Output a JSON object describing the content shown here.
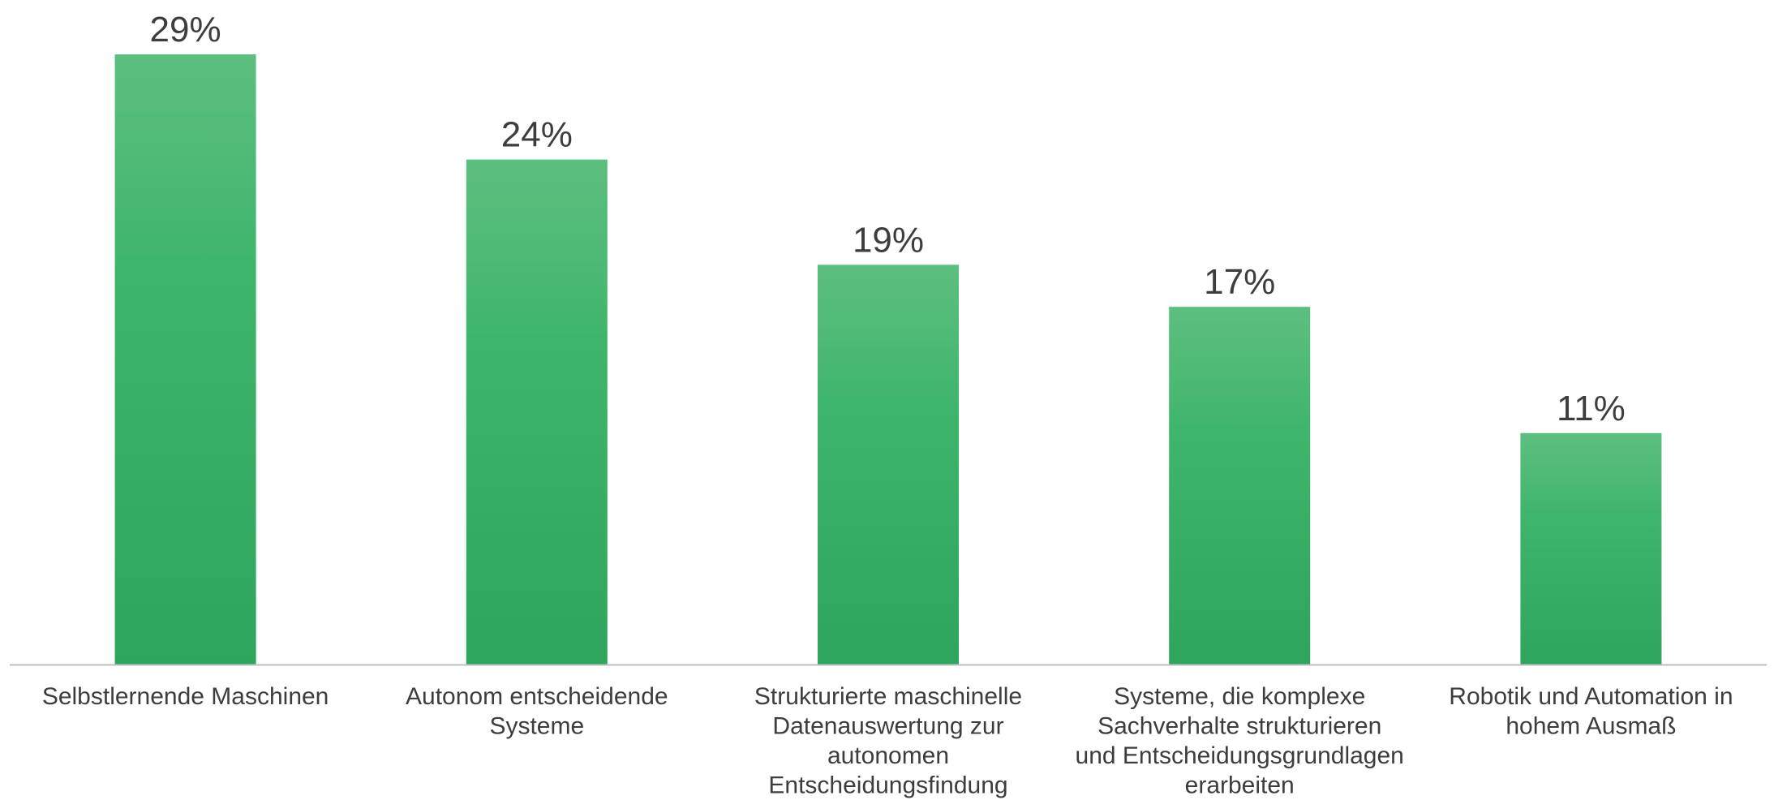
{
  "chart_data": {
    "type": "bar",
    "categories": [
      [
        "Selbstlernende Maschinen"
      ],
      [
        "Autonom entscheidende",
        "Systeme"
      ],
      [
        "Strukturierte maschinelle",
        "Datenauswertung zur",
        "autonomen",
        "Entscheidungsfindung"
      ],
      [
        "Systeme, die komplexe",
        "Sachverhalte strukturieren",
        "und Entscheidungsgrundlagen",
        "erarbeiten"
      ],
      [
        "Robotik und Automation in",
        "hohem Ausmaß"
      ]
    ],
    "values": [
      29,
      24,
      19,
      17,
      11
    ],
    "value_labels": [
      "29%",
      "24%",
      "19%",
      "17%",
      "11%"
    ],
    "ylim": [
      0,
      29
    ],
    "grid": false,
    "legend": false,
    "bar_color_top": "#5dbf7f",
    "bar_color_bottom": "#2ea55c",
    "axis_color": "#bfbfbf",
    "text_color": "#3d3d3d"
  }
}
